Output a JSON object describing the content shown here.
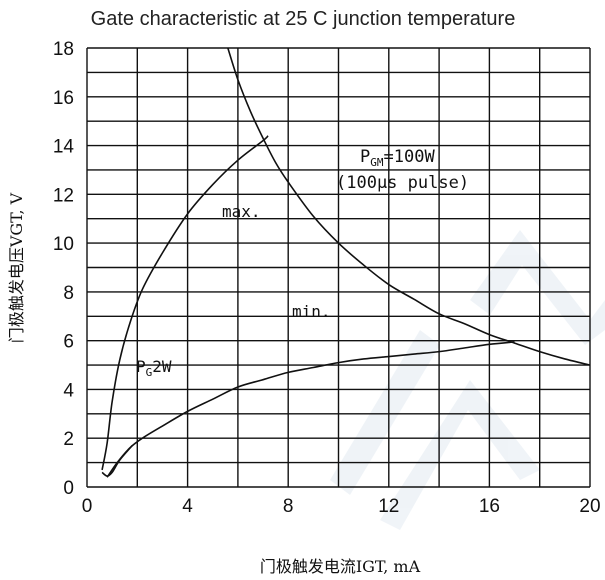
{
  "page": {
    "title": "Gate characteristic at 25   C junction temperature"
  },
  "chart_data": {
    "type": "line",
    "title": "Gate characteristic at 25   C junction temperature",
    "xlabel": "门极触发电流IGT, mA",
    "ylabel": "门极触发电压VGT, V",
    "xlim": [
      0,
      20
    ],
    "ylim": [
      0,
      18
    ],
    "x_ticks": [
      0,
      4,
      8,
      12,
      16,
      20
    ],
    "y_ticks": [
      0,
      2,
      4,
      6,
      8,
      10,
      12,
      14,
      16,
      18
    ],
    "grid": true,
    "grid_x_step": 2,
    "grid_y_step": 1,
    "series": [
      {
        "name": "max.",
        "points": [
          [
            0.6,
            0.7
          ],
          [
            0.8,
            1.8
          ],
          [
            1.0,
            3.5
          ],
          [
            1.3,
            5.2
          ],
          [
            1.7,
            6.7
          ],
          [
            2.2,
            8.1
          ],
          [
            3.0,
            9.6
          ],
          [
            4.0,
            11.2
          ],
          [
            5.0,
            12.4
          ],
          [
            6.0,
            13.4
          ],
          [
            7.0,
            14.2
          ],
          [
            7.2,
            14.4
          ]
        ]
      },
      {
        "name": "min.",
        "points": [
          [
            0.8,
            0.4
          ],
          [
            1.2,
            1.0
          ],
          [
            1.7,
            1.6
          ],
          [
            2.2,
            2.0
          ],
          [
            3.0,
            2.5
          ],
          [
            4.0,
            3.1
          ],
          [
            5.0,
            3.6
          ],
          [
            6.0,
            4.1
          ],
          [
            7.0,
            4.4
          ],
          [
            8.0,
            4.7
          ],
          [
            9.0,
            4.9
          ],
          [
            10.0,
            5.1
          ],
          [
            11.0,
            5.25
          ],
          [
            12.0,
            5.35
          ],
          [
            13.0,
            5.45
          ],
          [
            14.0,
            5.55
          ],
          [
            15.0,
            5.7
          ],
          [
            16.0,
            5.85
          ],
          [
            17.0,
            5.95
          ]
        ]
      },
      {
        "name": "PGM=100W (100µs pulse)",
        "points": [
          [
            5.6,
            18.0
          ],
          [
            6.0,
            16.7
          ],
          [
            6.5,
            15.4
          ],
          [
            7.0,
            14.3
          ],
          [
            7.5,
            13.3
          ],
          [
            8.0,
            12.5
          ],
          [
            9.0,
            11.1
          ],
          [
            10.0,
            10.0
          ],
          [
            11.0,
            9.1
          ],
          [
            12.0,
            8.3
          ],
          [
            13.0,
            7.7
          ],
          [
            14.0,
            7.1
          ],
          [
            15.0,
            6.7
          ],
          [
            16.0,
            6.25
          ],
          [
            17.0,
            5.9
          ],
          [
            18.0,
            5.55
          ],
          [
            19.0,
            5.25
          ],
          [
            20.0,
            5.0
          ]
        ]
      },
      {
        "name": "PG2W",
        "points": [
          [
            0.6,
            0.6
          ],
          [
            0.8,
            0.45
          ],
          [
            1.0,
            0.6
          ],
          [
            1.3,
            1.1
          ],
          [
            1.8,
            1.7
          ]
        ]
      }
    ],
    "annotations": {
      "max_label": "max.",
      "min_label": "min.",
      "pulse_power": "P",
      "pulse_power_sub": "GM",
      "pulse_power_value": "=100W",
      "pulse_width": "(100µs pulse)",
      "gate_power": "P",
      "gate_power_sub": "G",
      "gate_power_value": "2W"
    },
    "colors": {
      "line": "#111111",
      "grid": "#111111",
      "background": "#ffffff",
      "watermark": "#dde6ee"
    }
  }
}
